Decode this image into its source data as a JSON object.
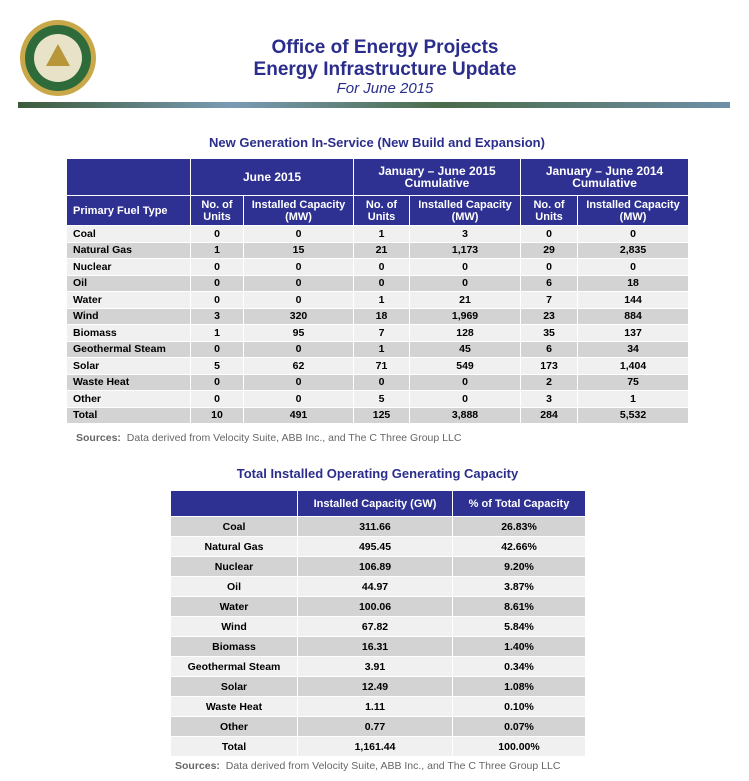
{
  "header": {
    "title": "Office of Energy Projects",
    "title2": "Energy Infrastructure Update",
    "subtitle": "For June 2015"
  },
  "table1": {
    "title": "New Generation In-Service (New Build and Expansion)",
    "groups": [
      "June 2015",
      "January –  June 2015 Cumulative",
      "January –  June 2014 Cumulative"
    ],
    "columns": [
      "Primary Fuel Type",
      "No. of Units",
      "Installed Capacity (MW)",
      "No. of Units",
      "Installed Capacity (MW)",
      "No. of Units",
      "Installed Capacity (MW)"
    ],
    "rows": [
      [
        "Coal",
        "0",
        "0",
        "1",
        "3",
        "0",
        "0"
      ],
      [
        "Natural Gas",
        "1",
        "15",
        "21",
        "1,173",
        "29",
        "2,835"
      ],
      [
        "Nuclear",
        "0",
        "0",
        "0",
        "0",
        "0",
        "0"
      ],
      [
        "Oil",
        "0",
        "0",
        "0",
        "0",
        "6",
        "18"
      ],
      [
        "Water",
        "0",
        "0",
        "1",
        "21",
        "7",
        "144"
      ],
      [
        "Wind",
        "3",
        "320",
        "18",
        "1,969",
        "23",
        "884"
      ],
      [
        "Biomass",
        "1",
        "95",
        "7",
        "128",
        "35",
        "137"
      ],
      [
        "Geothermal Steam",
        "0",
        "0",
        "1",
        "45",
        "6",
        "34"
      ],
      [
        "Solar",
        "5",
        "62",
        "71",
        "549",
        "173",
        "1,404"
      ],
      [
        "Waste Heat",
        "0",
        "0",
        "0",
        "0",
        "2",
        "75"
      ],
      [
        "Other",
        "0",
        "0",
        "5",
        "0",
        "3",
        "1"
      ],
      [
        "Total",
        "10",
        "491",
        "125",
        "3,888",
        "284",
        "5,532"
      ]
    ],
    "sources_label": "Sources:",
    "sources": "Data derived from Velocity Suite, ABB Inc., and The C Three Group LLC"
  },
  "table2": {
    "title": "Total Installed Operating Generating Capacity",
    "columns": [
      "Installed Capacity (GW)",
      "% of Total Capacity"
    ],
    "rows": [
      [
        "Coal",
        "311.66",
        "26.83%"
      ],
      [
        "Natural Gas",
        "495.45",
        "42.66%"
      ],
      [
        "Nuclear",
        "106.89",
        "9.20%"
      ],
      [
        "Oil",
        "44.97",
        "3.87%"
      ],
      [
        "Water",
        "100.06",
        "8.61%"
      ],
      [
        "Wind",
        "67.82",
        "5.84%"
      ],
      [
        "Biomass",
        "16.31",
        "1.40%"
      ],
      [
        "Geothermal Steam",
        "3.91",
        "0.34%"
      ],
      [
        "Solar",
        "12.49",
        "1.08%"
      ],
      [
        "Waste Heat",
        "1.11",
        "0.10%"
      ],
      [
        "Other",
        "0.77",
        "0.07%"
      ],
      [
        "Total",
        "1,161.44",
        "100.00%"
      ]
    ],
    "sources_label": "Sources:",
    "sources": "Data derived from Velocity Suite, ABB Inc., and The C Three Group LLC"
  }
}
